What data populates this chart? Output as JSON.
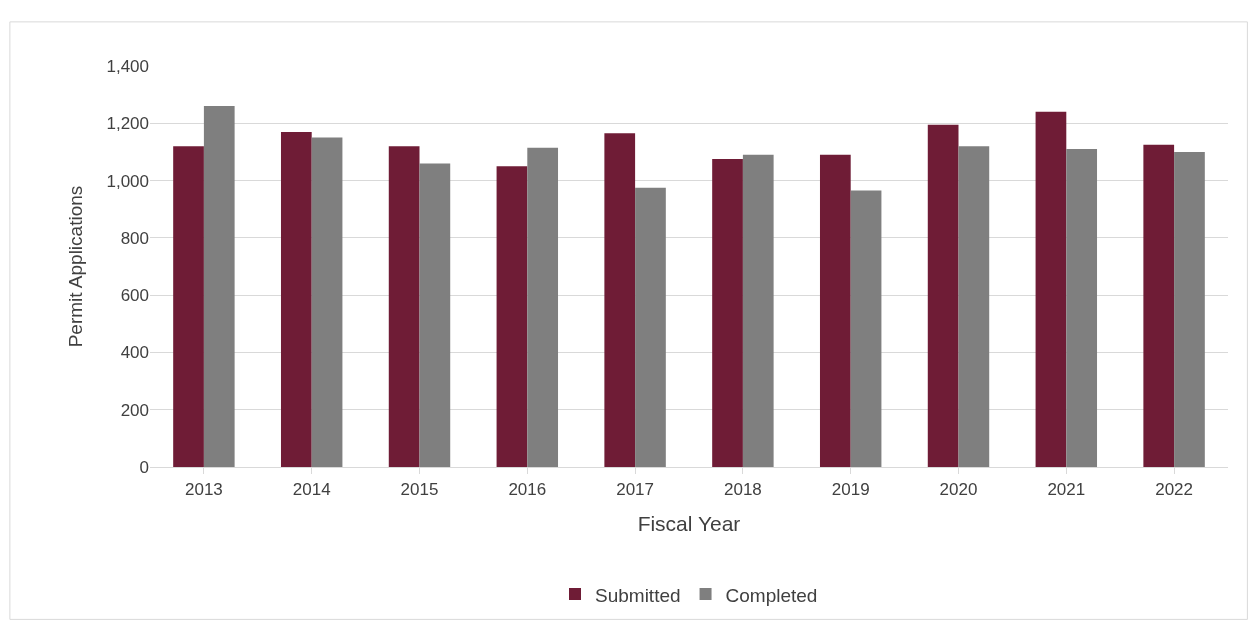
{
  "chart_data": {
    "type": "bar",
    "xlabel": "Fiscal Year",
    "ylabel": "Permit Applications",
    "categories": [
      "2013",
      "2014",
      "2015",
      "2016",
      "2017",
      "2018",
      "2019",
      "2020",
      "2021",
      "2022"
    ],
    "series": [
      {
        "name": "Submitted",
        "color": "#6f1c36",
        "values": [
          1120,
          1170,
          1120,
          1050,
          1165,
          1075,
          1090,
          1195,
          1240,
          1125
        ]
      },
      {
        "name": "Completed",
        "color": "#7f7f7f",
        "values": [
          1260,
          1150,
          1060,
          1115,
          975,
          1090,
          965,
          1120,
          1110,
          1100
        ]
      }
    ],
    "ylim": [
      0,
      1400
    ],
    "yticks": [
      0,
      {
        "value": 200,
        "label": "200"
      },
      {
        "value": 400,
        "label": "400"
      },
      {
        "value": 600,
        "label": "600"
      },
      {
        "value": 800,
        "label": "800"
      },
      {
        "value": 1000,
        "label": "1,000"
      },
      {
        "value": 1200,
        "label": "1,200"
      },
      {
        "value": 1400,
        "label": "1,400"
      }
    ],
    "grid": "y",
    "legend": "bottom"
  }
}
